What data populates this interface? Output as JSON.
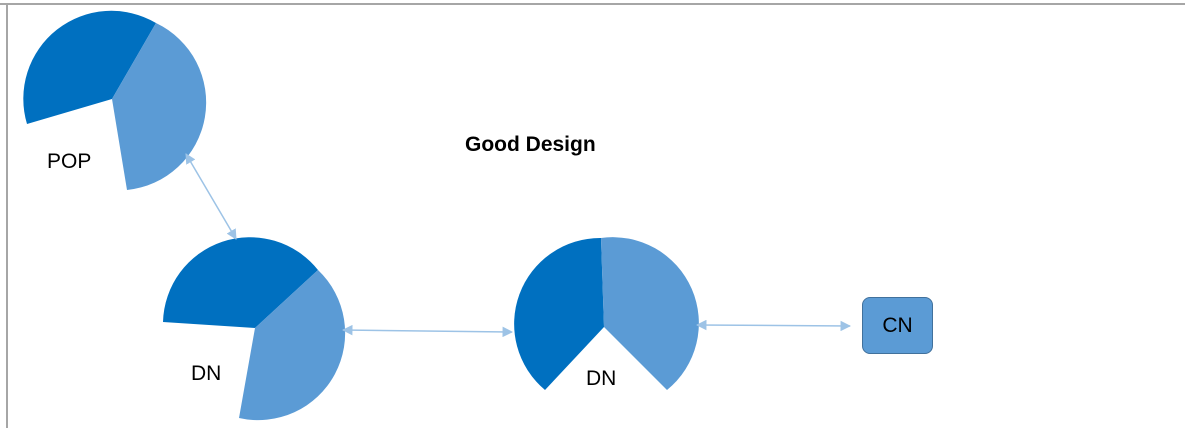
{
  "title": "Good Design",
  "nodes": {
    "pop": {
      "label": "POP"
    },
    "dn_left": {
      "label": "DN"
    },
    "dn_right": {
      "label": "DN"
    },
    "cn": {
      "label": "CN"
    }
  },
  "colors": {
    "dark_segment": "#0070c0",
    "light_segment": "#5b9bd5",
    "connector": "#9dc3e6",
    "frame": "#a6a6a6"
  }
}
